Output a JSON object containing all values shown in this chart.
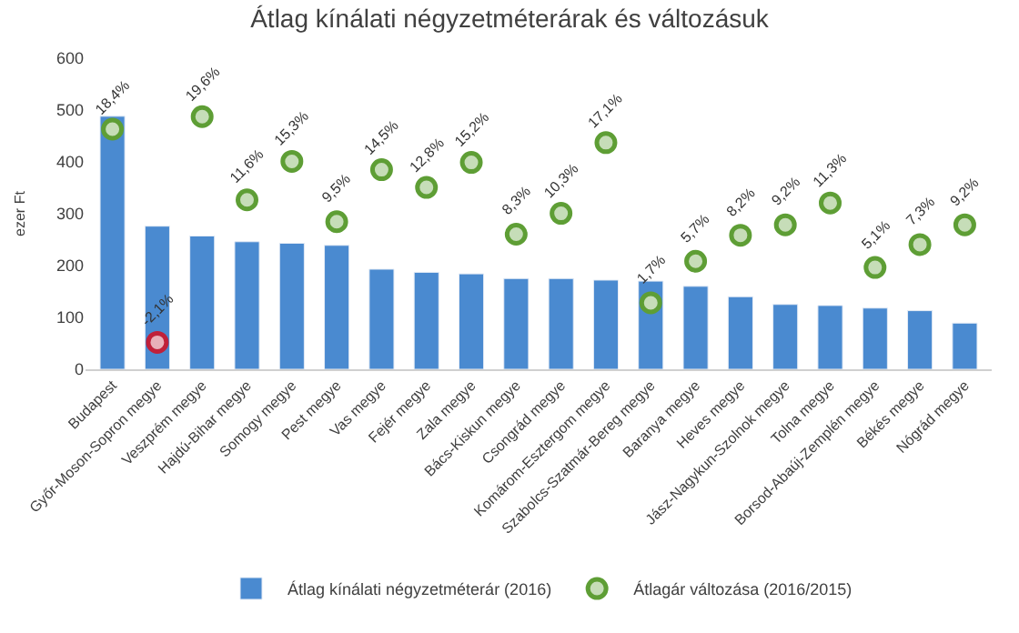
{
  "chart_data": {
    "type": "bar",
    "title": "Átlag kínálati négyzetméterárak és változásuk",
    "ylabel": "ezer Ft",
    "categories": [
      "Budapest",
      "Győr-Moson-Sopron megye",
      "Veszprém megye",
      "Hajdú-Bihar megye",
      "Somogy megye",
      "Pest megye",
      "Vas megye",
      "Fejér megye",
      "Zala megye",
      "Bács-Kiskun megye",
      "Csongrád megye",
      "Komárom-Esztergom megye",
      "Szabolcs-Szatmár-Bereg megye",
      "Baranya megye",
      "Heves megye",
      "Jász-Nagykun-Szolnok megye",
      "Tolna megye",
      "Borsod-Abaúj-Zemplén megye",
      "Békés megye",
      "Nógrád megye"
    ],
    "series": [
      {
        "name": "Átlag kínálati négyzetméterár (2016)",
        "color": "#4a8ad0",
        "values": [
          488,
          276,
          257,
          246,
          243,
          239,
          193,
          187,
          184,
          175,
          175,
          172,
          170,
          160,
          140,
          125,
          123,
          118,
          113,
          89
        ]
      },
      {
        "name": "Átlagár változása (2016/2015)",
        "type": "scatter",
        "axis": "y2",
        "marker": "circle",
        "colors": [
          "#5e9e35",
          "#c0203a",
          "#5e9e35",
          "#5e9e35",
          "#5e9e35",
          "#5e9e35",
          "#5e9e35",
          "#5e9e35",
          "#5e9e35",
          "#5e9e35",
          "#5e9e35",
          "#5e9e35",
          "#5e9e35",
          "#5e9e35",
          "#5e9e35",
          "#5e9e35",
          "#5e9e35",
          "#5e9e35",
          "#5e9e35",
          "#5e9e35"
        ],
        "values": [
          18.4,
          -2.1,
          19.6,
          11.6,
          15.3,
          9.5,
          14.5,
          12.8,
          15.2,
          8.3,
          10.3,
          17.1,
          1.7,
          5.7,
          8.2,
          9.2,
          11.3,
          5.1,
          7.3,
          9.2
        ],
        "value_labels": [
          "18,4%",
          "-2,1%",
          "19,6%",
          "11,6%",
          "15,3%",
          "9,5%",
          "14,5%",
          "12,8%",
          "15,2%",
          "8,3%",
          "10,3%",
          "17,1%",
          "1,7%",
          "5,7%",
          "8,2%",
          "9,2%",
          "11,3%",
          "5,1%",
          "7,3%",
          "9,2%"
        ]
      }
    ],
    "ylim": [
      0,
      600
    ],
    "yticks": [
      0,
      100,
      200,
      300,
      400,
      500,
      600
    ],
    "grid": false,
    "legend": "bottom"
  }
}
